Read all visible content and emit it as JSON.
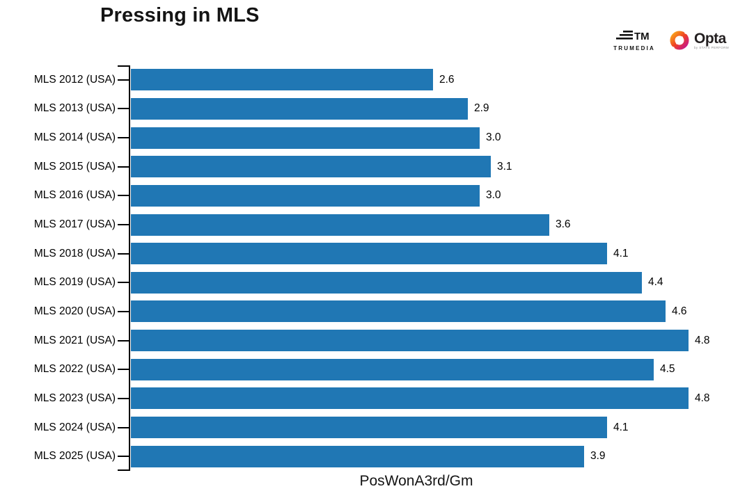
{
  "title": "Pressing in MLS",
  "branding": {
    "trumedia_label": "TRUMEDIA",
    "opta_label": "Opta",
    "opta_sub": "by STATS PERFORM"
  },
  "chart_data": {
    "type": "bar",
    "orientation": "horizontal",
    "title": "Pressing in MLS",
    "xlabel": "PosWonA3rd/Gm",
    "ylabel": "",
    "categories": [
      "MLS 2012 (USA)",
      "MLS 2013 (USA)",
      "MLS 2014 (USA)",
      "MLS 2015 (USA)",
      "MLS 2016 (USA)",
      "MLS 2017 (USA)",
      "MLS 2018 (USA)",
      "MLS 2019 (USA)",
      "MLS 2020 (USA)",
      "MLS 2021 (USA)",
      "MLS 2022 (USA)",
      "MLS 2023 (USA)",
      "MLS 2024 (USA)",
      "MLS 2025 (USA)"
    ],
    "values": [
      2.6,
      2.9,
      3.0,
      3.1,
      3.0,
      3.6,
      4.1,
      4.4,
      4.6,
      4.8,
      4.5,
      4.8,
      4.1,
      3.9
    ],
    "value_labels": [
      "2.6",
      "2.9",
      "3.0",
      "3.1",
      "3.0",
      "3.6",
      "4.1",
      "4.4",
      "4.6",
      "4.8",
      "4.5",
      "4.8",
      "4.1",
      "3.9"
    ],
    "xlim": [
      0,
      5.2
    ],
    "grid": false,
    "legend": null,
    "bar_color": "#2077b4",
    "text_color": "#000000"
  }
}
